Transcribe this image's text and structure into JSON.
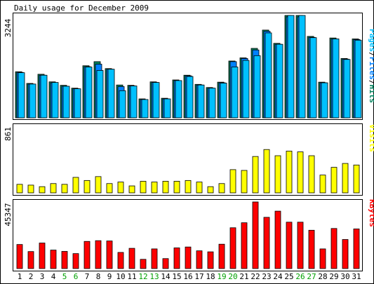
{
  "colors": {
    "background": "#ffffff",
    "frame": "#000000",
    "hits": "#00805c",
    "files": "#0080ff",
    "pages": "#00c0ff",
    "visits": "#ffff00",
    "kbytes": "#ff0000",
    "weekend_label": "#00a000",
    "weekday_label": "#000000"
  },
  "chart_data": [
    {
      "type": "bar",
      "title": "Daily usage for December 2009",
      "ymax_label": "3244",
      "ylim": [
        0,
        3244
      ],
      "legend": [
        {
          "name": "Pages",
          "color": "#00c0ff"
        },
        {
          "name": "Files",
          "color": "#0080ff"
        },
        {
          "name": "Hits",
          "color": "#00805c"
        }
      ],
      "legend_placement": "right",
      "categories": [
        "1",
        "2",
        "3",
        "4",
        "5",
        "6",
        "7",
        "8",
        "9",
        "10",
        "11",
        "12",
        "13",
        "14",
        "15",
        "16",
        "17",
        "18",
        "19",
        "20",
        "21",
        "22",
        "23",
        "24",
        "25",
        "26",
        "27",
        "28",
        "29",
        "30",
        "31"
      ],
      "weekend": [
        false,
        false,
        false,
        false,
        true,
        true,
        false,
        false,
        false,
        false,
        false,
        true,
        true,
        false,
        false,
        false,
        false,
        false,
        true,
        true,
        false,
        false,
        false,
        false,
        false,
        true,
        true,
        false,
        false,
        false,
        false
      ],
      "series": [
        {
          "name": "Hits",
          "values": [
            1460,
            1090,
            1380,
            1140,
            1030,
            940,
            1650,
            1780,
            1560,
            1040,
            1030,
            600,
            1140,
            620,
            1200,
            1350,
            1060,
            960,
            1130,
            1800,
            1900,
            2200,
            2780,
            2360,
            3244,
            3244,
            2580,
            1130,
            2530,
            1880,
            2500
          ]
        },
        {
          "name": "Files",
          "values": [
            1440,
            1070,
            1350,
            1110,
            1000,
            920,
            1620,
            1700,
            1540,
            990,
            1010,
            580,
            1120,
            600,
            1180,
            1330,
            1040,
            940,
            1110,
            1780,
            1880,
            2150,
            2740,
            2330,
            3200,
            3200,
            2550,
            1110,
            2500,
            1860,
            2480
          ]
        },
        {
          "name": "Pages",
          "values": [
            1430,
            1070,
            1350,
            1120,
            1000,
            920,
            1610,
            1500,
            1540,
            860,
            1010,
            580,
            1120,
            600,
            1180,
            1310,
            1040,
            940,
            1100,
            1610,
            1820,
            1970,
            2690,
            2330,
            3244,
            3244,
            2540,
            1110,
            2500,
            1850,
            2460
          ]
        }
      ]
    },
    {
      "type": "bar",
      "ymax_label": "861",
      "ylim": [
        0,
        861
      ],
      "legend": [
        {
          "name": "Visits",
          "color": "#ffff00"
        }
      ],
      "legend_placement": "right",
      "categories": [
        "1",
        "2",
        "3",
        "4",
        "5",
        "6",
        "7",
        "8",
        "9",
        "10",
        "11",
        "12",
        "13",
        "14",
        "15",
        "16",
        "17",
        "18",
        "19",
        "20",
        "21",
        "22",
        "23",
        "24",
        "25",
        "26",
        "27",
        "28",
        "29",
        "30",
        "31"
      ],
      "series": [
        {
          "name": "Visits",
          "values": [
            110,
            100,
            80,
            120,
            110,
            200,
            160,
            210,
            120,
            140,
            90,
            150,
            140,
            150,
            150,
            160,
            140,
            80,
            120,
            300,
            290,
            470,
            560,
            480,
            540,
            530,
            480,
            230,
            330,
            380,
            360
          ]
        }
      ]
    },
    {
      "type": "bar",
      "ymax_label": "45347",
      "ylim": [
        0,
        45347
      ],
      "legend": [
        {
          "name": "KBytes",
          "color": "#ff0000"
        }
      ],
      "legend_placement": "right",
      "categories": [
        "1",
        "2",
        "3",
        "4",
        "5",
        "6",
        "7",
        "8",
        "9",
        "10",
        "11",
        "12",
        "13",
        "14",
        "15",
        "16",
        "17",
        "18",
        "19",
        "20",
        "21",
        "22",
        "23",
        "24",
        "25",
        "26",
        "27",
        "28",
        "29",
        "30",
        "31"
      ],
      "series": [
        {
          "name": "KBytes",
          "values": [
            16400,
            11600,
            17400,
            12600,
            11700,
            10200,
            18500,
            19000,
            18800,
            11000,
            13800,
            6300,
            13400,
            6800,
            14100,
            14700,
            12100,
            11400,
            16600,
            27800,
            31200,
            45347,
            34900,
            39100,
            31600,
            31600,
            26100,
            13400,
            27300,
            19800,
            27000
          ]
        }
      ]
    }
  ]
}
